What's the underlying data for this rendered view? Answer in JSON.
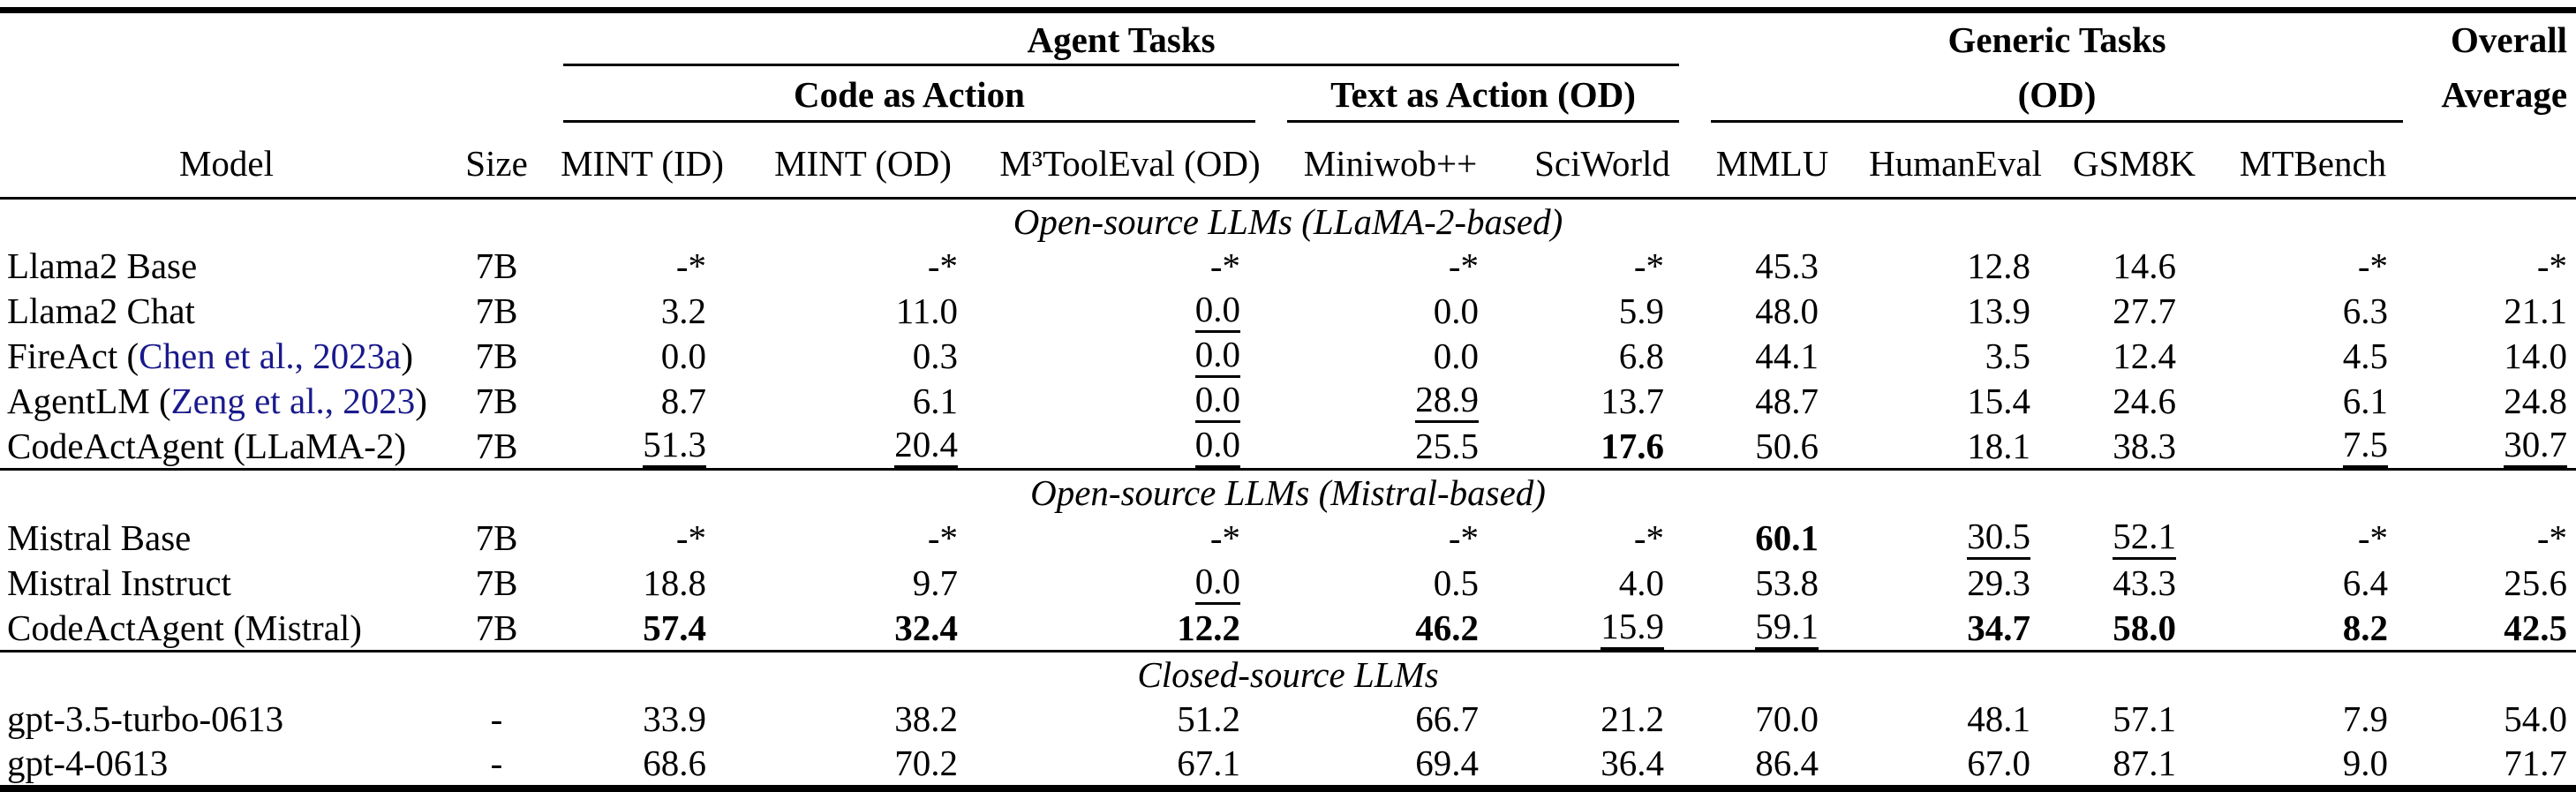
{
  "colors": {
    "text": "#000000",
    "background": "#FFFFFF",
    "citation_blue": "#1A1A8C"
  },
  "header": {
    "agent_tasks": "Agent Tasks",
    "code_as_action": "Code as Action",
    "text_as_action": "Text as Action (OD)",
    "generic_tasks": "Generic Tasks",
    "generic_od": "(OD)",
    "overall_line1": "Overall",
    "overall_line2": "Average",
    "columns": [
      "Model",
      "Size",
      "MINT (ID)",
      "MINT (OD)",
      "M³ToolEval (OD)",
      "Miniwob++",
      "SciWorld",
      "MMLU",
      "HumanEval",
      "GSM8K",
      "MTBench"
    ]
  },
  "sections": [
    {
      "title": "Open-source LLMs (LLaMA-2-based)",
      "rows": [
        {
          "model": "Llama2 Base",
          "size": "7B",
          "cells": [
            {
              "v": "-*"
            },
            {
              "v": "-*"
            },
            {
              "v": "-*"
            },
            {
              "v": "-*"
            },
            {
              "v": "-*"
            },
            {
              "v": "45.3"
            },
            {
              "v": "12.8"
            },
            {
              "v": "14.6"
            },
            {
              "v": "-*"
            },
            {
              "v": "-*"
            }
          ]
        },
        {
          "model": "Llama2 Chat",
          "size": "7B",
          "cells": [
            {
              "v": "3.2"
            },
            {
              "v": "11.0"
            },
            {
              "v": "0.0",
              "u": true
            },
            {
              "v": "0.0"
            },
            {
              "v": "5.9"
            },
            {
              "v": "48.0"
            },
            {
              "v": "13.9"
            },
            {
              "v": "27.7"
            },
            {
              "v": "6.3"
            },
            {
              "v": "21.1"
            }
          ]
        },
        {
          "model": "FireAct",
          "cite": "Chen et al., 2023a",
          "size": "7B",
          "cells": [
            {
              "v": "0.0"
            },
            {
              "v": "0.3"
            },
            {
              "v": "0.0",
              "u": true
            },
            {
              "v": "0.0"
            },
            {
              "v": "6.8"
            },
            {
              "v": "44.1"
            },
            {
              "v": "3.5"
            },
            {
              "v": "12.4"
            },
            {
              "v": "4.5"
            },
            {
              "v": "14.0"
            }
          ]
        },
        {
          "model": "AgentLM",
          "cite": "Zeng et al., 2023",
          "size": "7B",
          "cells": [
            {
              "v": "8.7"
            },
            {
              "v": "6.1"
            },
            {
              "v": "0.0",
              "u": true
            },
            {
              "v": "28.9",
              "u": true
            },
            {
              "v": "13.7"
            },
            {
              "v": "48.7"
            },
            {
              "v": "15.4"
            },
            {
              "v": "24.6"
            },
            {
              "v": "6.1"
            },
            {
              "v": "24.8"
            }
          ]
        },
        {
          "model": "CodeActAgent (LLaMA-2)",
          "size": "7B",
          "cells": [
            {
              "v": "51.3",
              "u": true
            },
            {
              "v": "20.4",
              "u": true
            },
            {
              "v": "0.0",
              "u": true
            },
            {
              "v": "25.5"
            },
            {
              "v": "17.6",
              "b": true
            },
            {
              "v": "50.6"
            },
            {
              "v": "18.1"
            },
            {
              "v": "38.3"
            },
            {
              "v": "7.5",
              "u": true
            },
            {
              "v": "30.7",
              "u": true
            }
          ]
        }
      ]
    },
    {
      "title": "Open-source LLMs (Mistral-based)",
      "rows": [
        {
          "model": "Mistral Base",
          "size": "7B",
          "cells": [
            {
              "v": "-*"
            },
            {
              "v": "-*"
            },
            {
              "v": "-*"
            },
            {
              "v": "-*"
            },
            {
              "v": "-*"
            },
            {
              "v": "60.1",
              "b": true
            },
            {
              "v": "30.5",
              "u": true
            },
            {
              "v": "52.1",
              "u": true
            },
            {
              "v": "-*"
            },
            {
              "v": "-*"
            }
          ]
        },
        {
          "model": "Mistral Instruct",
          "size": "7B",
          "cells": [
            {
              "v": "18.8"
            },
            {
              "v": "9.7"
            },
            {
              "v": "0.0",
              "u": true
            },
            {
              "v": "0.5"
            },
            {
              "v": "4.0"
            },
            {
              "v": "53.8"
            },
            {
              "v": "29.3"
            },
            {
              "v": "43.3"
            },
            {
              "v": "6.4"
            },
            {
              "v": "25.6"
            }
          ]
        },
        {
          "model": "CodeActAgent (Mistral)",
          "size": "7B",
          "cells": [
            {
              "v": "57.4",
              "b": true
            },
            {
              "v": "32.4",
              "b": true
            },
            {
              "v": "12.2",
              "b": true
            },
            {
              "v": "46.2",
              "b": true
            },
            {
              "v": "15.9",
              "u": true
            },
            {
              "v": "59.1",
              "u": true
            },
            {
              "v": "34.7",
              "b": true
            },
            {
              "v": "58.0",
              "b": true
            },
            {
              "v": "8.2",
              "b": true
            },
            {
              "v": "42.5",
              "b": true
            }
          ]
        }
      ]
    },
    {
      "title": "Closed-source LLMs",
      "rows": [
        {
          "model": "gpt-3.5-turbo-0613",
          "size": "-",
          "cells": [
            {
              "v": "33.9"
            },
            {
              "v": "38.2"
            },
            {
              "v": "51.2"
            },
            {
              "v": "66.7"
            },
            {
              "v": "21.2"
            },
            {
              "v": "70.0"
            },
            {
              "v": "48.1"
            },
            {
              "v": "57.1"
            },
            {
              "v": "7.9"
            },
            {
              "v": "54.0"
            }
          ]
        },
        {
          "model": "gpt-4-0613",
          "size": "-",
          "cells": [
            {
              "v": "68.6"
            },
            {
              "v": "70.2"
            },
            {
              "v": "67.1"
            },
            {
              "v": "69.4"
            },
            {
              "v": "36.4"
            },
            {
              "v": "86.4"
            },
            {
              "v": "67.0"
            },
            {
              "v": "87.1"
            },
            {
              "v": "9.0"
            },
            {
              "v": "71.7"
            }
          ]
        }
      ]
    }
  ]
}
